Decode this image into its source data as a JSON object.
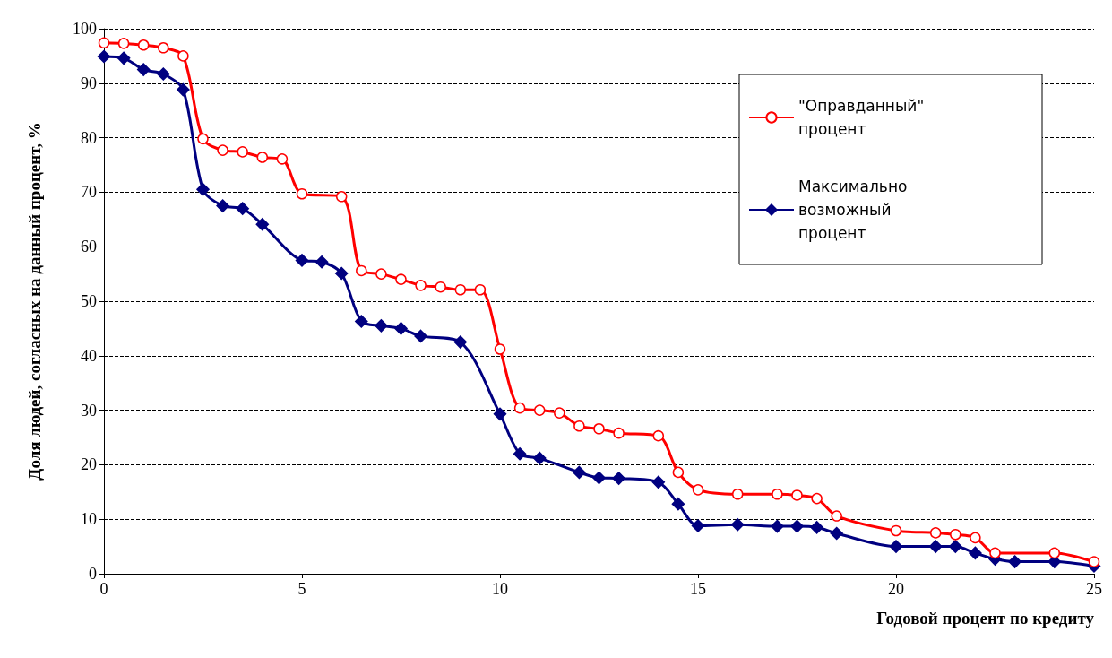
{
  "chart_data": {
    "type": "line",
    "xlabel": "Годовой процент по кредиту",
    "ylabel": "Доля людей, согласных на данный процент, %",
    "xlim": [
      0,
      25
    ],
    "xticks": [
      0,
      5,
      10,
      15,
      20,
      25
    ],
    "ylim": [
      0,
      100
    ],
    "yticks": [
      0,
      10,
      20,
      30,
      40,
      50,
      60,
      70,
      80,
      90,
      100
    ],
    "grid": "y",
    "legend": "top right",
    "series": [
      {
        "name": "\"Оправданный\" процент",
        "color": "#ff0000",
        "marker": "circle",
        "x": [
          0,
          0.5,
          1,
          1.5,
          2,
          2.5,
          3,
          3.5,
          4,
          4.5,
          5,
          6,
          6.5,
          7,
          7.5,
          8,
          8.5,
          9,
          9.5,
          10,
          10.5,
          11,
          11.5,
          12,
          12.5,
          13,
          14,
          14.5,
          15,
          16,
          17,
          17.5,
          18,
          18.5,
          20,
          21,
          21.5,
          22,
          22.5,
          24,
          25
        ],
        "values": [
          97.4,
          97.3,
          97.0,
          96.5,
          95.0,
          79.8,
          77.7,
          77.4,
          76.4,
          76.1,
          69.7,
          69.2,
          55.6,
          55.0,
          54.0,
          52.9,
          52.6,
          52.1,
          52.1,
          41.2,
          30.4,
          30.0,
          29.5,
          27.1,
          26.6,
          25.8,
          25.3,
          18.6,
          15.4,
          14.6,
          14.6,
          14.4,
          13.8,
          10.6,
          7.9,
          7.5,
          7.2,
          6.6,
          3.8,
          3.8,
          2.2
        ]
      },
      {
        "name": "Максимально возможный процент",
        "color": "#000080",
        "marker": "diamond",
        "x": [
          0,
          0.5,
          1,
          1.5,
          2,
          2.5,
          3,
          3.5,
          4,
          5,
          5.5,
          6,
          6.5,
          7,
          7.5,
          8,
          9,
          10,
          10.5,
          11,
          12,
          12.5,
          13,
          14,
          14.5,
          15,
          16,
          17,
          17.5,
          18,
          18.5,
          20,
          21,
          21.5,
          22,
          22.5,
          23,
          24,
          25
        ],
        "values": [
          94.9,
          94.6,
          92.5,
          91.7,
          88.8,
          70.5,
          67.5,
          67.0,
          64.1,
          57.5,
          57.2,
          55.1,
          46.3,
          45.5,
          45.0,
          43.6,
          42.5,
          29.3,
          22.0,
          21.2,
          18.6,
          17.6,
          17.5,
          16.8,
          12.8,
          8.8,
          9.0,
          8.7,
          8.7,
          8.5,
          7.4,
          5.0,
          5.0,
          5.0,
          3.8,
          2.7,
          2.2,
          2.2,
          1.4
        ]
      }
    ]
  }
}
